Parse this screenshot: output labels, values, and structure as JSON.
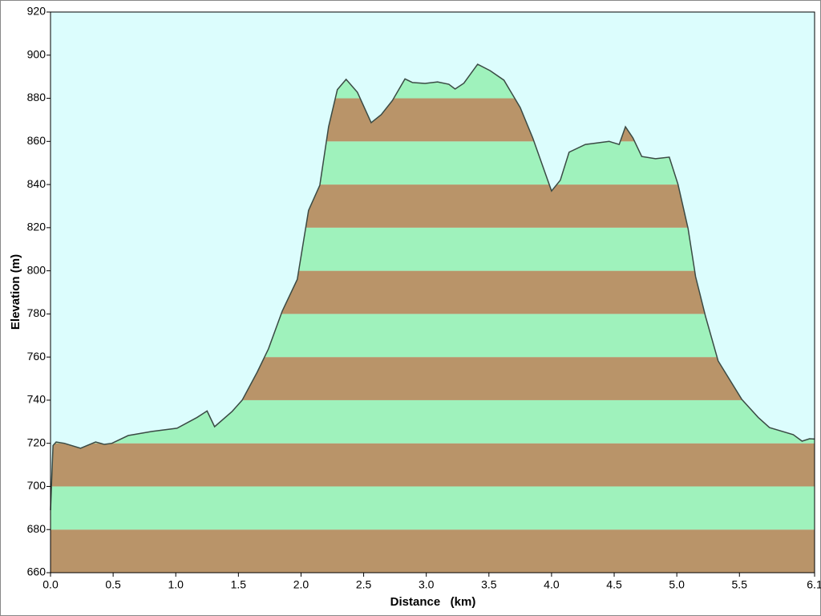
{
  "chart_data": {
    "type": "area",
    "xlabel": "Distance   (km)",
    "ylabel": "Elevation (m)",
    "x": [
      0,
      0.02,
      0.045,
      0.11,
      0.24,
      0.36,
      0.43,
      0.49,
      0.62,
      0.81,
      1.01,
      1.17,
      1.25,
      1.31,
      1.45,
      1.53,
      1.65,
      1.74,
      1.85,
      1.97,
      2.06,
      2.15,
      2.22,
      2.29,
      2.36,
      2.45,
      2.56,
      2.64,
      2.73,
      2.83,
      2.89,
      2.99,
      3.09,
      3.18,
      3.23,
      3.3,
      3.41,
      3.51,
      3.62,
      3.75,
      3.85,
      4.0,
      4.07,
      4.14,
      4.27,
      4.46,
      4.54,
      4.59,
      4.65,
      4.72,
      4.83,
      4.94,
      5.01,
      5.09,
      5.15,
      5.23,
      5.33,
      5.52,
      5.65,
      5.74,
      5.93,
      6.0,
      6.06,
      6.1
    ],
    "values": [
      689,
      719,
      720.6,
      720,
      717.7,
      720.6,
      719.5,
      720,
      723.6,
      725.5,
      727,
      732,
      735,
      727.7,
      734.8,
      740,
      753,
      763.8,
      781.3,
      796,
      828,
      839.7,
      866.8,
      884,
      888.8,
      882.8,
      868.7,
      872.4,
      879,
      889,
      887.3,
      886.9,
      887.6,
      886.5,
      884.3,
      887,
      895.8,
      892.8,
      888.4,
      875.7,
      861.6,
      837,
      842,
      855,
      858.6,
      860,
      858.6,
      866.8,
      861.6,
      853,
      852,
      852.7,
      840,
      819.6,
      797.3,
      778.7,
      758.2,
      740.3,
      732,
      727.3,
      724,
      721,
      722.1,
      722
    ],
    "xlim": [
      0,
      6.1
    ],
    "ylim": [
      660,
      920
    ],
    "xticks": [
      {
        "value": 0,
        "label": "0.0"
      },
      0.5,
      {
        "value": 1,
        "label": "1.0"
      },
      1.5,
      {
        "value": 2,
        "label": "2.0"
      },
      2.5,
      {
        "value": 3,
        "label": "3.0"
      },
      3.5,
      {
        "value": 4,
        "label": "4.0"
      },
      4.5,
      {
        "value": 5,
        "label": "5.0"
      },
      5.5,
      6.1
    ],
    "yticks": [
      660,
      680,
      700,
      720,
      740,
      760,
      780,
      800,
      820,
      840,
      860,
      880,
      900,
      920
    ],
    "band_colors": [
      "#b99469",
      "#9ff2bc"
    ],
    "line_color": "#3a4a44",
    "background": "#dcfdfd"
  }
}
